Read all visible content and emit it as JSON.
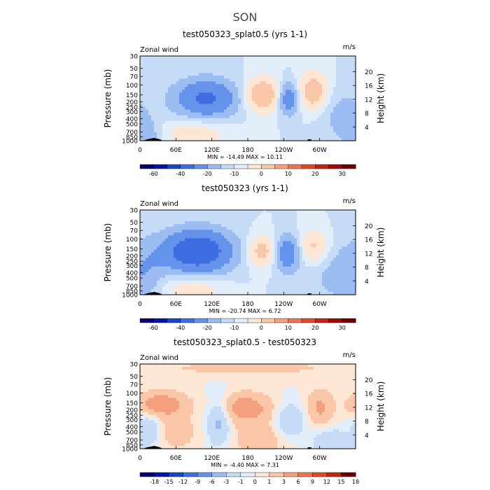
{
  "figure_title": "SON",
  "colors": {
    "cb_std": [
      "#08006e",
      "#0016a8",
      "#1a46c6",
      "#3d6de0",
      "#6592ea",
      "#9cbdf2",
      "#c6dcf6",
      "#e3eefb",
      "#fde6d3",
      "#f9c6a8",
      "#f4a07c",
      "#ec7450",
      "#e04a2c",
      "#c02414",
      "#9a0a06",
      "#6c0000"
    ],
    "cb_diff": [
      "#08006e",
      "#0016a8",
      "#1a46c6",
      "#3d6de0",
      "#6592ea",
      "#9cbdf2",
      "#c6dcf6",
      "#e3eefb",
      "#fde6d3",
      "#f9c6a8",
      "#f4a07c",
      "#ec7450",
      "#e04a2c",
      "#c02414",
      "#6c0000"
    ]
  },
  "chart_data": [
    {
      "type": "heatmap",
      "title": "test050323_splat0.5 (yrs 1-1)",
      "left_label": "Zonal wind",
      "units": "m/s",
      "ylabel": "Pressure (mb)",
      "ylabel_right": "Height (km)",
      "pressure_ticks": [
        "30",
        "50",
        "70",
        "100",
        "150",
        "200",
        "250",
        "300",
        "400",
        "500",
        "700",
        "850",
        "1000"
      ],
      "height_ticks": [
        "4",
        "8",
        "12",
        "16",
        "20"
      ],
      "lon_ticks": [
        "0",
        "60E",
        "120E",
        "180",
        "120W",
        "60W"
      ],
      "stats": "MIN = -14.49   MAX =  10.11",
      "min": -14.49,
      "max": 10.11,
      "colorbar_labels": [
        "-60",
        "-40",
        "-20",
        "-10",
        "0",
        "10",
        "20",
        "30"
      ],
      "features": [
        {
          "lon": 110,
          "p": 175,
          "amp": -11,
          "wlon": 36,
          "wp": 0.55
        },
        {
          "lon": 205,
          "p": 150,
          "amp": 9,
          "wlon": 20,
          "wp": 0.5
        },
        {
          "lon": 248,
          "p": 175,
          "amp": -9,
          "wlon": 12,
          "wp": 0.45
        },
        {
          "lon": 290,
          "p": 130,
          "amp": 8,
          "wlon": 17,
          "wp": 0.55
        },
        {
          "lon": 90,
          "p": 720,
          "amp": 4,
          "wlon": 40,
          "wp": 0.4
        },
        {
          "lon": 10,
          "p": 850,
          "amp": -4,
          "wlon": 18,
          "wp": 0.45
        },
        {
          "lon": 340,
          "p": 350,
          "amp": -3,
          "wlon": 30,
          "wp": 0.8
        }
      ]
    },
    {
      "type": "heatmap",
      "title": "test050323 (yrs 1-1)",
      "left_label": "Zonal wind",
      "units": "m/s",
      "ylabel": "Pressure (mb)",
      "ylabel_right": "Height (km)",
      "pressure_ticks": [
        "30",
        "50",
        "70",
        "100",
        "150",
        "200",
        "250",
        "300",
        "400",
        "500",
        "700",
        "850",
        "1000"
      ],
      "height_ticks": [
        "4",
        "8",
        "12",
        "16",
        "20"
      ],
      "lon_ticks": [
        "0",
        "60E",
        "120E",
        "180",
        "120W",
        "60W"
      ],
      "stats": "MIN = -20.74   MAX =   6.72",
      "min": -20.74,
      "max": 6.72,
      "colorbar_labels": [
        "-60",
        "-40",
        "-20",
        "-10",
        "0",
        "10",
        "20",
        "30"
      ],
      "features": [
        {
          "lon": 95,
          "p": 165,
          "amp": -16,
          "wlon": 40,
          "wp": 0.6
        },
        {
          "lon": 205,
          "p": 165,
          "amp": 7,
          "wlon": 18,
          "wp": 0.45
        },
        {
          "lon": 245,
          "p": 180,
          "amp": -9,
          "wlon": 16,
          "wp": 0.5
        },
        {
          "lon": 290,
          "p": 140,
          "amp": 6,
          "wlon": 18,
          "wp": 0.5
        },
        {
          "lon": 90,
          "p": 750,
          "amp": 4,
          "wlon": 35,
          "wp": 0.35
        },
        {
          "lon": 10,
          "p": 400,
          "amp": -3,
          "wlon": 20,
          "wp": 0.8
        },
        {
          "lon": 330,
          "p": 400,
          "amp": -3,
          "wlon": 35,
          "wp": 0.9
        }
      ]
    },
    {
      "type": "heatmap",
      "title": "test050323_splat0.5 - test050323",
      "left_label": "Zonal wind",
      "units": "m/s",
      "ylabel": "Pressure (mb)",
      "ylabel_right": "Height (km)",
      "pressure_ticks": [
        "30",
        "50",
        "70",
        "100",
        "150",
        "200",
        "250",
        "300",
        "400",
        "500",
        "700",
        "850",
        "1000"
      ],
      "height_ticks": [
        "4",
        "8",
        "12",
        "16",
        "20"
      ],
      "lon_ticks": [
        "0",
        "60E",
        "120E",
        "180",
        "120W",
        "60W"
      ],
      "stats": "MIN =  -4.40   MAX =   7.31",
      "min": -4.4,
      "max": 7.31,
      "colorbar_labels": [
        "-18",
        "-15",
        "-12",
        "-9",
        "-6",
        "-3",
        "-1",
        "0",
        "1",
        "3",
        "6",
        "9",
        "12",
        "15",
        "18"
      ],
      "features": [
        {
          "lon": 35,
          "p": 160,
          "amp": 5,
          "wlon": 30,
          "wp": 0.35
        },
        {
          "lon": 175,
          "p": 180,
          "amp": 4.5,
          "wlon": 30,
          "wp": 0.4
        },
        {
          "lon": 132,
          "p": 330,
          "amp": -4,
          "wlon": 14,
          "wp": 0.7
        },
        {
          "lon": 250,
          "p": 330,
          "amp": -3.5,
          "wlon": 18,
          "wp": 0.5
        },
        {
          "lon": 300,
          "p": 180,
          "amp": 3.5,
          "wlon": 15,
          "wp": 0.5
        },
        {
          "lon": 15,
          "p": 450,
          "amp": -3,
          "wlon": 14,
          "wp": 0.5
        },
        {
          "lon": 320,
          "p": 800,
          "amp": -3,
          "wlon": 22,
          "wp": 0.4
        },
        {
          "lon": 60,
          "p": 500,
          "amp": 2,
          "wlon": 25,
          "wp": 0.5
        },
        {
          "lon": 200,
          "p": 600,
          "amp": 2,
          "wlon": 40,
          "wp": 0.6
        },
        {
          "lon": 180,
          "p": 35,
          "amp": 1.5,
          "wlon": 120,
          "wp": 0.25
        }
      ]
    }
  ]
}
